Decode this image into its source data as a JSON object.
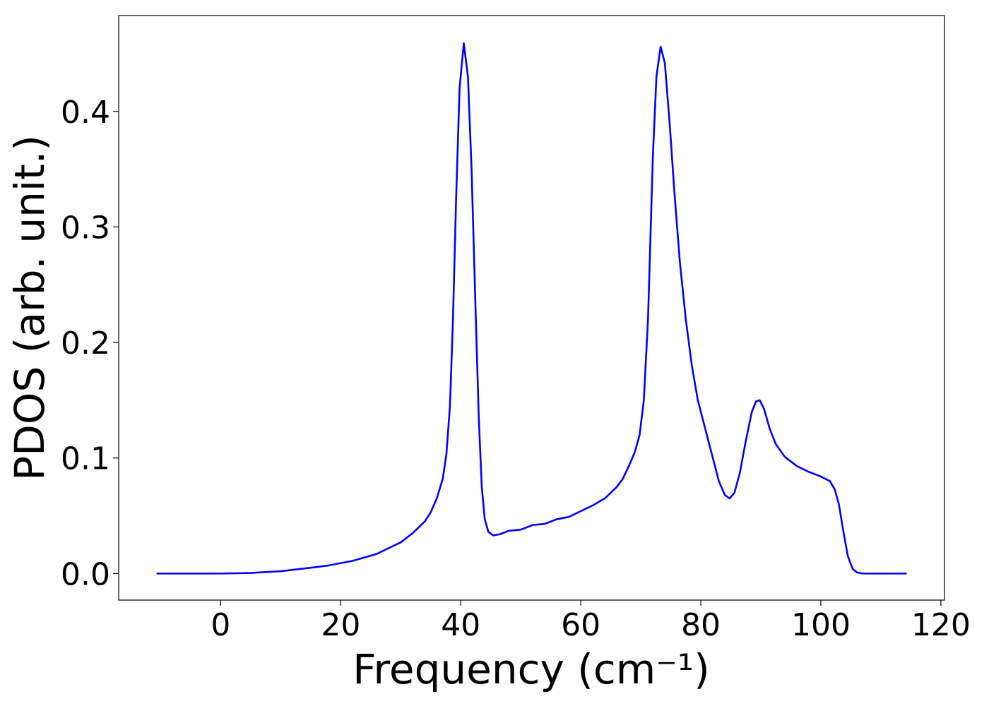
{
  "chart_data": {
    "type": "line",
    "xlabel": "Frequency (cm⁻¹)",
    "ylabel": "PDOS (arb. unit.)",
    "x": [
      -10.7,
      0,
      5,
      10,
      15,
      18,
      20,
      22,
      24,
      26,
      28,
      30,
      32,
      34,
      35,
      36,
      37,
      37.6,
      38.2,
      38.7,
      39.2,
      39.8,
      40.5,
      41.2,
      41.8,
      42.4,
      43.0,
      43.5,
      44.0,
      44.6,
      45.4,
      46.5,
      48,
      50,
      52,
      54,
      56,
      58,
      60,
      62,
      64,
      66,
      67,
      68,
      69,
      69.8,
      70.5,
      71.2,
      72,
      72.6,
      73.3,
      74,
      74.8,
      75.6,
      76.5,
      77.5,
      78.5,
      79.5,
      81,
      82,
      83,
      84,
      84.8,
      85.6,
      86.5,
      87.5,
      88.5,
      89.2,
      89.8,
      90.5,
      91.5,
      92.5,
      94,
      96,
      98,
      100,
      101.5,
      102.3,
      103,
      103.8,
      104.5,
      105.3,
      106,
      107,
      114.3
    ],
    "series": [
      {
        "name": "PDOS",
        "color": "#0000ff",
        "values": [
          0,
          0,
          0.0005,
          0.002,
          0.005,
          0.007,
          0.009,
          0.011,
          0.014,
          0.017,
          0.022,
          0.027,
          0.035,
          0.045,
          0.053,
          0.065,
          0.082,
          0.103,
          0.145,
          0.22,
          0.32,
          0.42,
          0.459,
          0.43,
          0.35,
          0.24,
          0.135,
          0.075,
          0.047,
          0.036,
          0.033,
          0.034,
          0.037,
          0.038,
          0.042,
          0.043,
          0.047,
          0.049,
          0.054,
          0.059,
          0.065,
          0.075,
          0.082,
          0.093,
          0.105,
          0.12,
          0.15,
          0.22,
          0.36,
          0.43,
          0.456,
          0.442,
          0.39,
          0.33,
          0.27,
          0.22,
          0.18,
          0.15,
          0.12,
          0.1,
          0.08,
          0.068,
          0.065,
          0.07,
          0.087,
          0.115,
          0.14,
          0.149,
          0.15,
          0.143,
          0.125,
          0.112,
          0.101,
          0.093,
          0.088,
          0.084,
          0.08,
          0.073,
          0.06,
          0.035,
          0.015,
          0.004,
          0.001,
          0,
          0
        ]
      }
    ],
    "xlim": [
      -17,
      120.6
    ],
    "ylim": [
      -0.023,
      0.483
    ],
    "xticks": [
      0,
      20,
      40,
      60,
      80,
      100,
      120
    ],
    "yticks": [
      {
        "value": 0,
        "label": "0.0"
      },
      0.1,
      0.2,
      0.3,
      0.4
    ],
    "grid": false
  }
}
